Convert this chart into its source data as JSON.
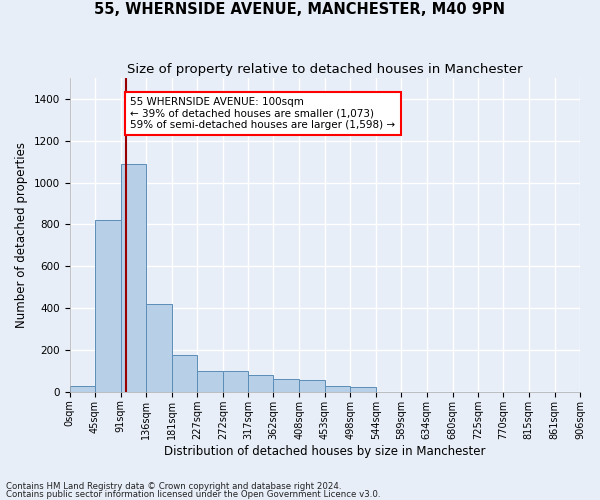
{
  "title": "55, WHERNSIDE AVENUE, MANCHESTER, M40 9PN",
  "subtitle": "Size of property relative to detached houses in Manchester",
  "xlabel": "Distribution of detached houses by size in Manchester",
  "ylabel": "Number of detached properties",
  "footnote1": "Contains HM Land Registry data © Crown copyright and database right 2024.",
  "footnote2": "Contains public sector information licensed under the Open Government Licence v3.0.",
  "annotation_line1": "55 WHERNSIDE AVENUE: 100sqm",
  "annotation_line2": "← 39% of detached houses are smaller (1,073)",
  "annotation_line3": "59% of semi-detached houses are larger (1,598) →",
  "bar_color": "#b8cfe8",
  "bar_edge_color": "#5b8db8",
  "property_line_color": "#990000",
  "property_line_x": 100,
  "bin_edges": [
    0,
    45,
    91,
    136,
    181,
    227,
    272,
    317,
    362,
    408,
    453,
    498,
    544,
    589,
    634,
    680,
    725,
    770,
    815,
    861,
    906
  ],
  "bar_heights": [
    30,
    820,
    1090,
    420,
    175,
    100,
    100,
    80,
    60,
    55,
    30,
    25,
    0,
    0,
    0,
    0,
    0,
    0,
    0,
    0
  ],
  "ylim": [
    0,
    1500
  ],
  "yticks": [
    0,
    200,
    400,
    600,
    800,
    1000,
    1200,
    1400
  ],
  "background_color": "#e8eef8",
  "plot_bg_color": "#e8eef8",
  "grid_color": "#ffffff",
  "title_fontsize": 10.5,
  "subtitle_fontsize": 9.5,
  "axis_label_fontsize": 8.5,
  "tick_fontsize": 7.5,
  "annot_fontsize": 7.5
}
